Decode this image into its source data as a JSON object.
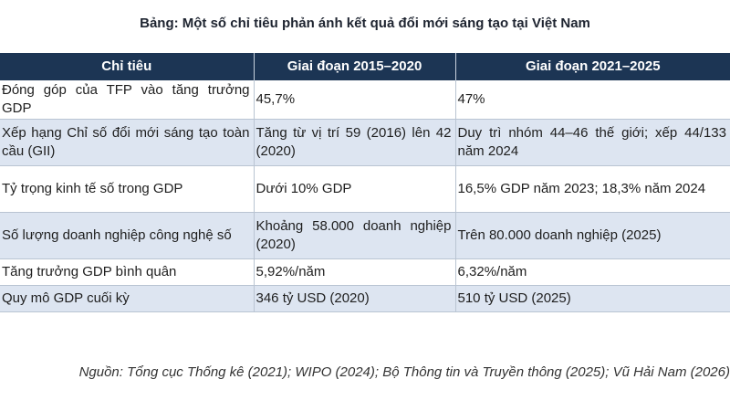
{
  "title": "Bảng: Một số chỉ tiêu phản ánh kết quả đổi mới sáng tạo tại Việt Nam",
  "table": {
    "headers": [
      "Chỉ tiêu",
      "Giai đoạn 2015–2020",
      "Giai đoạn 2021–2025"
    ],
    "rows": [
      [
        "Đóng góp của TFP vào tăng trưởng GDP",
        "45,7%",
        "47%"
      ],
      [
        "Xếp hạng Chỉ số đổi mới sáng tạo toàn cầu (GII)",
        "Tăng từ vị trí 59 (2016) lên 42 (2020)",
        "Duy trì nhóm 44–46 thế giới; xếp 44/133 năm 2024"
      ],
      [
        "Tỷ trọng kinh tế số trong GDP",
        "Dưới 10% GDP",
        "16,5% GDP năm 2023; 18,3% năm 2024"
      ],
      [
        "Số lượng doanh nghiệp công nghệ số",
        "Khoảng 58.000 doanh nghiệp (2020)",
        "Trên 80.000 doanh nghiệp (2025)"
      ],
      [
        "Tăng trưởng GDP bình quân",
        "5,92%/năm",
        "6,32%/năm"
      ],
      [
        "Quy mô GDP cuối kỳ",
        "346 tỷ USD (2020)",
        "510 tỷ USD (2025)"
      ]
    ]
  },
  "source": "Nguồn: Tổng cục Thống kê (2021); WIPO (2024); Bộ Thông tin và Truyền thông (2025); Vũ Hải Nam (2026)"
}
